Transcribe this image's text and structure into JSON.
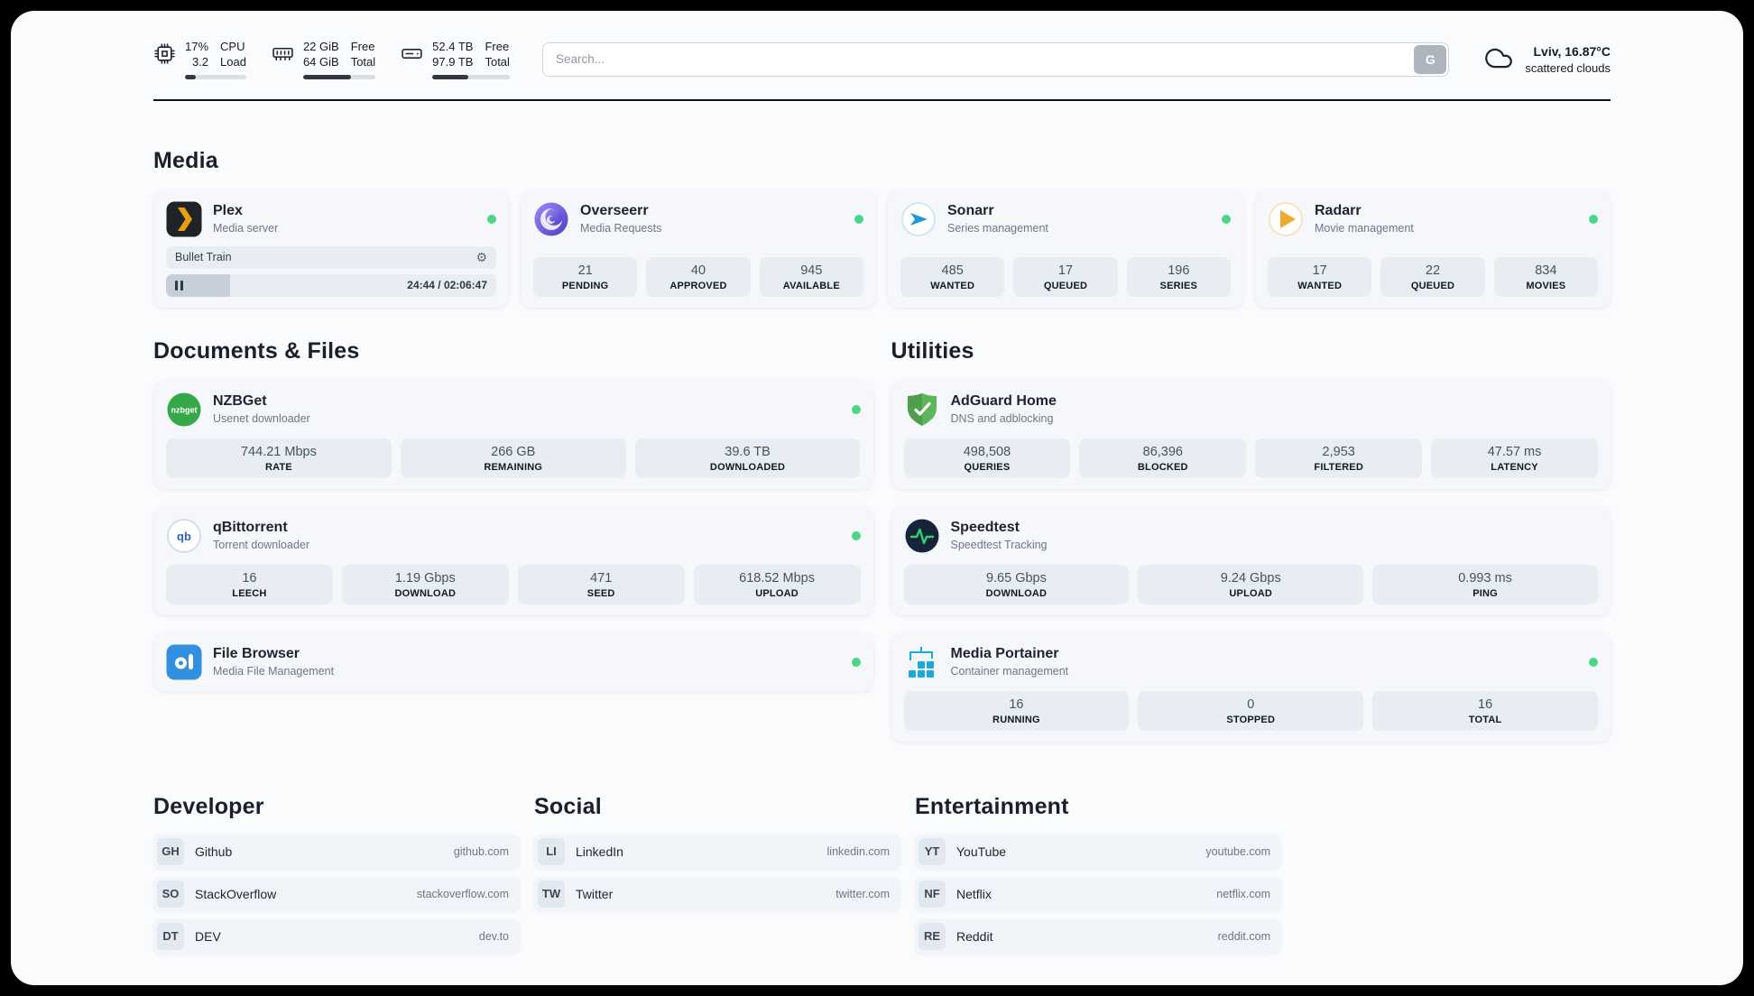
{
  "colors": {
    "page-bg": "#fafbfd",
    "card-bg": "#f5f7fa",
    "statbox-bg": "#e8edf3",
    "status-online": "#4cd787",
    "bar-fill": "#2f3844",
    "plex-gold": "#e5a00d",
    "sonarr-blue": "#1f9ad6",
    "radarr-yellow": "#f0a92e",
    "nzbget-green": "#36a849",
    "adguard-green": "#5fb65a",
    "qbittorrent-blue": "#2e5fb8",
    "speedtest-navy": "#16243a",
    "speedtest-green": "#2fd072",
    "filebrowser-blue": "#3290e0",
    "portainer-blue": "#1aa9dd"
  },
  "header": {
    "cpu": {
      "value1": "17%",
      "value2": "3.2",
      "label1": "CPU",
      "label2": "Load",
      "progress": 17
    },
    "ram": {
      "value1": "22 GiB",
      "value2": "64 GiB",
      "label1": "Free",
      "label2": "Total",
      "progress": 66
    },
    "disk": {
      "value1": "52.4 TB",
      "value2": "97.9 TB",
      "label1": "Free",
      "label2": "Total",
      "progress": 47
    },
    "search": {
      "placeholder": "Search...",
      "button_label": "G"
    },
    "weather": {
      "location": "Lviv, 16.87°C",
      "condition": "scattered clouds"
    }
  },
  "sections": {
    "media": {
      "title": "Media",
      "plex": {
        "name": "Plex",
        "subtitle": "Media server",
        "now_playing": {
          "title": "Bullet Train",
          "time": "24:44 / 02:06:47",
          "progress_percent": 19.5
        }
      },
      "overseerr": {
        "name": "Overseerr",
        "subtitle": "Media Requests",
        "stats": [
          {
            "value": "21",
            "label": "PENDING"
          },
          {
            "value": "40",
            "label": "APPROVED"
          },
          {
            "value": "945",
            "label": "AVAILABLE"
          }
        ]
      },
      "sonarr": {
        "name": "Sonarr",
        "subtitle": "Series management",
        "stats": [
          {
            "value": "485",
            "label": "WANTED"
          },
          {
            "value": "17",
            "label": "QUEUED"
          },
          {
            "value": "196",
            "label": "SERIES"
          }
        ]
      },
      "radarr": {
        "name": "Radarr",
        "subtitle": "Movie management",
        "stats": [
          {
            "value": "17",
            "label": "WANTED"
          },
          {
            "value": "22",
            "label": "QUEUED"
          },
          {
            "value": "834",
            "label": "MOVIES"
          }
        ]
      }
    },
    "documents": {
      "title": "Documents & Files",
      "nzbget": {
        "name": "NZBGet",
        "subtitle": "Usenet downloader",
        "icon_text": "nzbget",
        "stats": [
          {
            "value": "744.21 Mbps",
            "label": "RATE"
          },
          {
            "value": "266 GB",
            "label": "REMAINING"
          },
          {
            "value": "39.6 TB",
            "label": "DOWNLOADED"
          }
        ]
      },
      "qbittorrent": {
        "name": "qBittorrent",
        "subtitle": "Torrent downloader",
        "icon_text": "qb",
        "stats": [
          {
            "value": "16",
            "label": "LEECH"
          },
          {
            "value": "1.19 Gbps",
            "label": "DOWNLOAD"
          },
          {
            "value": "471",
            "label": "SEED"
          },
          {
            "value": "618.52 Mbps",
            "label": "UPLOAD"
          }
        ]
      },
      "filebrowser": {
        "name": "File Browser",
        "subtitle": "Media File Management"
      }
    },
    "utilities": {
      "title": "Utilities",
      "adguard": {
        "name": "AdGuard Home",
        "subtitle": "DNS and adblocking",
        "stats": [
          {
            "value": "498,508",
            "label": "QUERIES"
          },
          {
            "value": "86,396",
            "label": "BLOCKED"
          },
          {
            "value": "2,953",
            "label": "FILTERED"
          },
          {
            "value": "47.57 ms",
            "label": "LATENCY"
          }
        ]
      },
      "speedtest": {
        "name": "Speedtest",
        "subtitle": "Speedtest Tracking",
        "stats": [
          {
            "value": "9.65 Gbps",
            "label": "DOWNLOAD"
          },
          {
            "value": "9.24 Gbps",
            "label": "UPLOAD"
          },
          {
            "value": "0.993 ms",
            "label": "PING"
          }
        ]
      },
      "portainer": {
        "name": "Media Portainer",
        "subtitle": "Container management",
        "stats": [
          {
            "value": "16",
            "label": "RUNNING"
          },
          {
            "value": "0",
            "label": "STOPPED"
          },
          {
            "value": "16",
            "label": "TOTAL"
          }
        ]
      }
    }
  },
  "bookmarks": {
    "developer": {
      "title": "Developer",
      "items": [
        {
          "abbr": "GH",
          "name": "Github",
          "url": "github.com"
        },
        {
          "abbr": "SO",
          "name": "StackOverflow",
          "url": "stackoverflow.com"
        },
        {
          "abbr": "DT",
          "name": "DEV",
          "url": "dev.to"
        }
      ]
    },
    "social": {
      "title": "Social",
      "items": [
        {
          "abbr": "LI",
          "name": "LinkedIn",
          "url": "linkedin.com"
        },
        {
          "abbr": "TW",
          "name": "Twitter",
          "url": "twitter.com"
        }
      ]
    },
    "entertainment": {
      "title": "Entertainment",
      "items": [
        {
          "abbr": "YT",
          "name": "YouTube",
          "url": "youtube.com"
        },
        {
          "abbr": "NF",
          "name": "Netflix",
          "url": "netflix.com"
        },
        {
          "abbr": "RE",
          "name": "Reddit",
          "url": "reddit.com"
        }
      ]
    }
  }
}
